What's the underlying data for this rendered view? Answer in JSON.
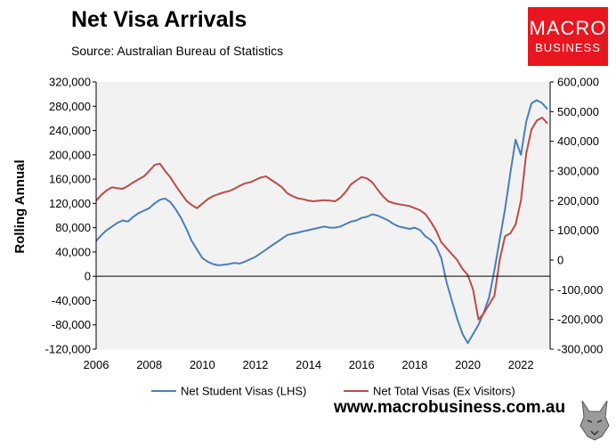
{
  "header": {
    "title": "Net Visa Arrivals",
    "source": "Source: Australian Bureau of Statistics"
  },
  "logo": {
    "line1": "MACRO",
    "line2": "BUSINESS"
  },
  "footer": {
    "url": "www.macrobusiness.com.au"
  },
  "colors": {
    "student": "#4a7ebb",
    "total": "#be4b48",
    "plot_bg": "#f2f2f2",
    "logo_bg": "#e8161f"
  },
  "chart_data": {
    "type": "line",
    "ylabel": "Rolling Annual",
    "xlim": [
      2006,
      2023.1
    ],
    "x_ticks": [
      2006,
      2008,
      2010,
      2012,
      2014,
      2016,
      2018,
      2020,
      2022
    ],
    "y_left": {
      "min": -120000,
      "max": 320000,
      "step": 40000
    },
    "y_right": {
      "min": -300000,
      "max": 600000,
      "step": 100000
    },
    "legend_position": "bottom",
    "series": [
      {
        "name": "Net Student Visas (LHS)",
        "axis": "left",
        "x": [
          2006.0,
          2006.2,
          2006.4,
          2006.6,
          2006.8,
          2007.0,
          2007.2,
          2007.4,
          2007.6,
          2007.8,
          2008.0,
          2008.2,
          2008.4,
          2008.6,
          2008.8,
          2009.0,
          2009.2,
          2009.4,
          2009.6,
          2009.8,
          2010.0,
          2010.2,
          2010.4,
          2010.6,
          2010.8,
          2011.0,
          2011.2,
          2011.4,
          2011.6,
          2011.8,
          2012.0,
          2012.2,
          2012.4,
          2012.6,
          2012.8,
          2013.0,
          2013.2,
          2013.4,
          2013.6,
          2013.8,
          2014.0,
          2014.2,
          2014.4,
          2014.6,
          2014.8,
          2015.0,
          2015.2,
          2015.4,
          2015.6,
          2015.8,
          2016.0,
          2016.2,
          2016.4,
          2016.6,
          2016.8,
          2017.0,
          2017.2,
          2017.4,
          2017.6,
          2017.8,
          2018.0,
          2018.2,
          2018.4,
          2018.6,
          2018.8,
          2019.0,
          2019.2,
          2019.4,
          2019.6,
          2019.8,
          2020.0,
          2020.2,
          2020.4,
          2020.6,
          2020.8,
          2021.0,
          2021.2,
          2021.4,
          2021.6,
          2021.8,
          2022.0,
          2022.2,
          2022.4,
          2022.6,
          2022.8,
          2023.0
        ],
        "values": [
          58000,
          68000,
          76000,
          82000,
          88000,
          92000,
          90000,
          98000,
          104000,
          108000,
          112000,
          120000,
          126000,
          128000,
          122000,
          110000,
          96000,
          78000,
          58000,
          44000,
          30000,
          24000,
          20000,
          18000,
          19000,
          20000,
          22000,
          21000,
          24000,
          28000,
          32000,
          38000,
          44000,
          50000,
          56000,
          62000,
          68000,
          70000,
          72000,
          74000,
          76000,
          78000,
          80000,
          82000,
          80000,
          80000,
          82000,
          86000,
          90000,
          92000,
          96000,
          98000,
          102000,
          100000,
          96000,
          92000,
          86000,
          82000,
          80000,
          78000,
          80000,
          76000,
          66000,
          60000,
          50000,
          30000,
          -10000,
          -40000,
          -70000,
          -95000,
          -110000,
          -95000,
          -80000,
          -60000,
          -35000,
          10000,
          60000,
          110000,
          170000,
          225000,
          200000,
          255000,
          285000,
          290000,
          285000,
          275000
        ]
      },
      {
        "name": "Net Total Visas (Ex Visitors)",
        "axis": "right",
        "x": [
          2006.0,
          2006.2,
          2006.4,
          2006.6,
          2006.8,
          2007.0,
          2007.2,
          2007.4,
          2007.6,
          2007.8,
          2008.0,
          2008.2,
          2008.4,
          2008.6,
          2008.8,
          2009.0,
          2009.2,
          2009.4,
          2009.6,
          2009.8,
          2010.0,
          2010.2,
          2010.4,
          2010.6,
          2010.8,
          2011.0,
          2011.2,
          2011.4,
          2011.6,
          2011.8,
          2012.0,
          2012.2,
          2012.4,
          2012.6,
          2012.8,
          2013.0,
          2013.2,
          2013.4,
          2013.6,
          2013.8,
          2014.0,
          2014.2,
          2014.4,
          2014.6,
          2014.8,
          2015.0,
          2015.2,
          2015.4,
          2015.6,
          2015.8,
          2016.0,
          2016.2,
          2016.4,
          2016.6,
          2016.8,
          2017.0,
          2017.2,
          2017.4,
          2017.6,
          2017.8,
          2018.0,
          2018.2,
          2018.4,
          2018.6,
          2018.8,
          2019.0,
          2019.2,
          2019.4,
          2019.6,
          2019.8,
          2020.0,
          2020.2,
          2020.4,
          2020.6,
          2020.8,
          2021.0,
          2021.2,
          2021.4,
          2021.6,
          2021.8,
          2022.0,
          2022.2,
          2022.4,
          2022.6,
          2022.8,
          2023.0
        ],
        "values": [
          200000,
          220000,
          235000,
          245000,
          242000,
          240000,
          250000,
          262000,
          272000,
          282000,
          300000,
          320000,
          325000,
          300000,
          278000,
          250000,
          225000,
          200000,
          185000,
          175000,
          190000,
          205000,
          215000,
          222000,
          228000,
          232000,
          240000,
          250000,
          258000,
          262000,
          270000,
          278000,
          282000,
          270000,
          258000,
          245000,
          225000,
          215000,
          208000,
          205000,
          200000,
          198000,
          200000,
          202000,
          200000,
          198000,
          210000,
          230000,
          255000,
          268000,
          280000,
          275000,
          262000,
          238000,
          215000,
          198000,
          192000,
          188000,
          185000,
          182000,
          175000,
          168000,
          155000,
          130000,
          100000,
          60000,
          40000,
          20000,
          0,
          -30000,
          -50000,
          -100000,
          -200000,
          -180000,
          -150000,
          -120000,
          0,
          80000,
          90000,
          120000,
          200000,
          360000,
          440000,
          470000,
          480000,
          460000
        ]
      }
    ]
  }
}
